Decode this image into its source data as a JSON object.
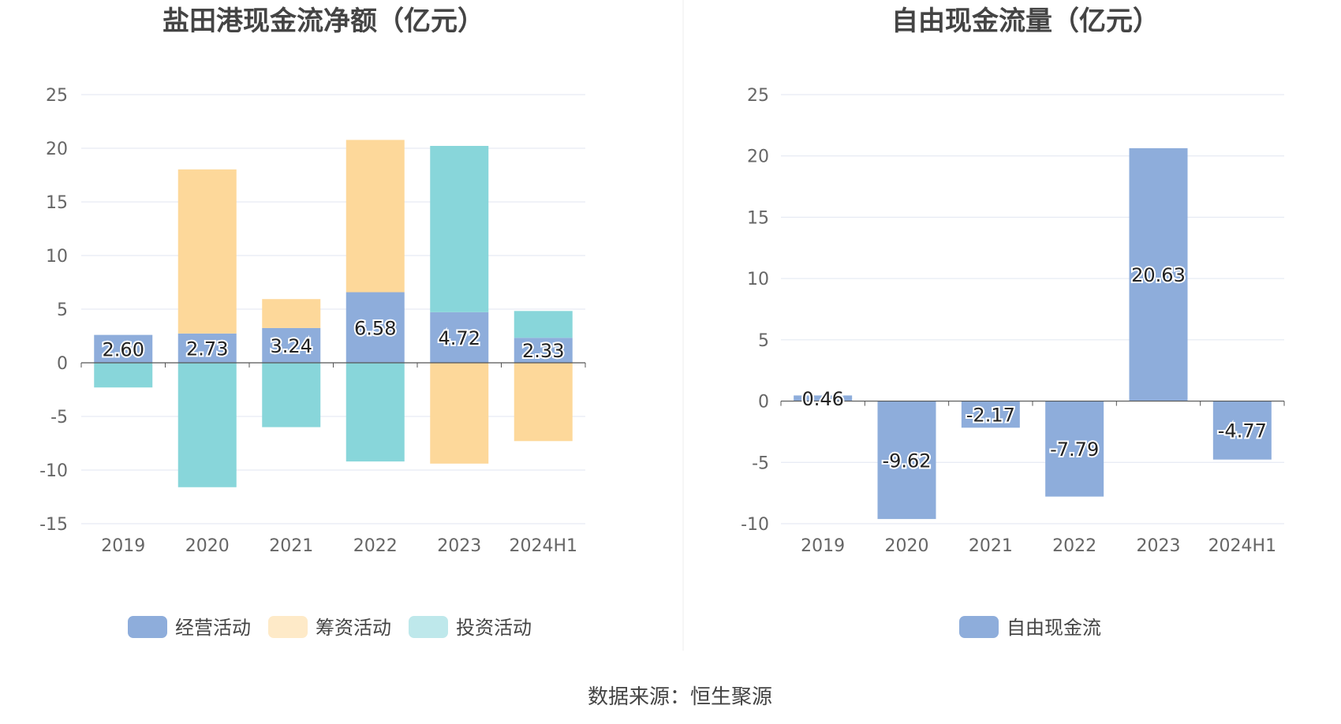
{
  "source": "数据来源：恒生聚源",
  "chart_data": [
    {
      "type": "bar",
      "stacked": true,
      "title": "盐田港现金流净额（亿元）",
      "categories": [
        "2019",
        "2020",
        "2021",
        "2022",
        "2023",
        "2024H1"
      ],
      "ylim": [
        -15,
        25
      ],
      "yticks": [
        25,
        20,
        15,
        10,
        5,
        0,
        -5,
        -10,
        -15
      ],
      "grid": true,
      "legend_position": "bottom",
      "label_series": 0,
      "series": [
        {
          "name": "经营活动",
          "color": "#8EADDB",
          "values": [
            2.6,
            2.73,
            3.24,
            6.58,
            4.72,
            2.33
          ],
          "labels": [
            "2.60",
            "2.73",
            "3.24",
            "6.58",
            "4.72",
            "2.33"
          ]
        },
        {
          "name": "筹资活动",
          "color": "#FDD89A",
          "values": [
            0,
            15.3,
            2.7,
            14.2,
            -9.4,
            -7.3
          ]
        },
        {
          "name": "投资活动",
          "color": "#88D6DA",
          "values": [
            -2.3,
            -11.6,
            -6.0,
            -9.2,
            15.5,
            2.5
          ]
        }
      ]
    },
    {
      "type": "bar",
      "title": "自由现金流量（亿元）",
      "categories": [
        "2019",
        "2020",
        "2021",
        "2022",
        "2023",
        "2024H1"
      ],
      "ylim": [
        -10,
        25
      ],
      "yticks": [
        25,
        20,
        15,
        10,
        5,
        0,
        -5,
        -10
      ],
      "grid": true,
      "legend_position": "bottom",
      "label_series": 0,
      "series": [
        {
          "name": "自由现金流",
          "color": "#8EADDB",
          "values": [
            0.46,
            -9.62,
            -2.17,
            -7.79,
            20.63,
            -4.77
          ],
          "labels": [
            "0.46",
            "-9.62",
            "-2.17",
            "-7.79",
            "20.63",
            "-4.77"
          ]
        }
      ]
    }
  ]
}
